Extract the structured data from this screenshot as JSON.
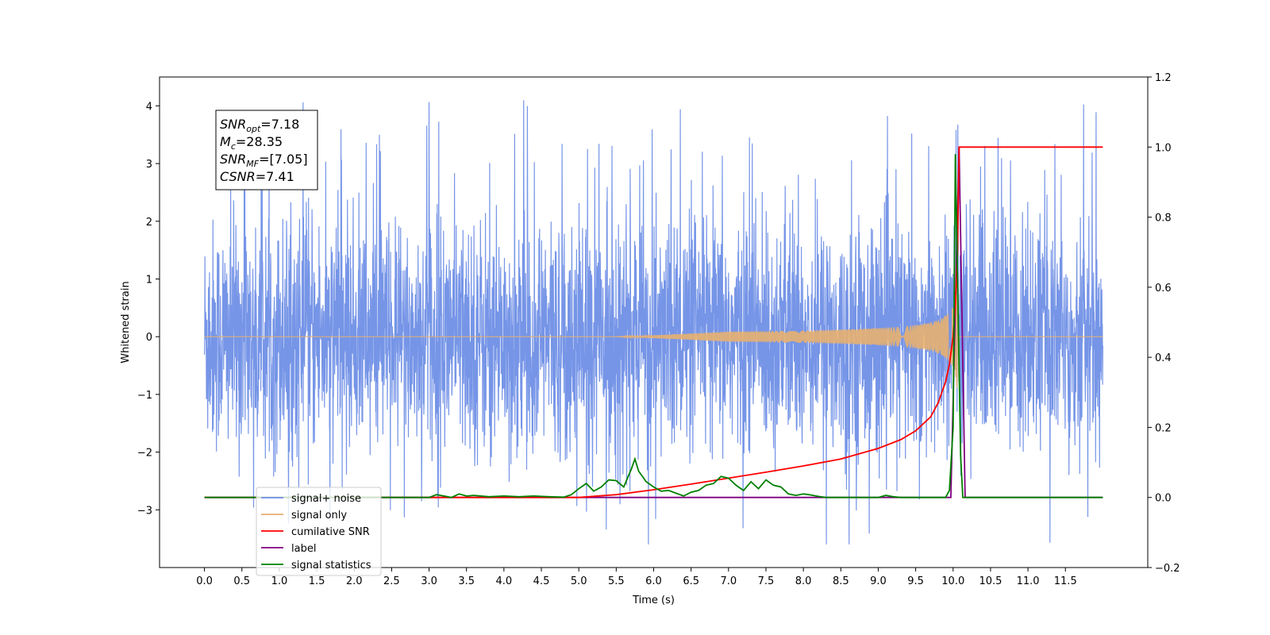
{
  "chart_data": {
    "type": "line",
    "title": "",
    "xlabel": "Time (s)",
    "ylabel": "Whitened strain",
    "y2label": "",
    "xlim": [
      -0.6,
      12.6
    ],
    "ylim": [
      -4.0,
      4.5
    ],
    "y2lim": [
      -0.2,
      1.2
    ],
    "x_ticks": [
      0.0,
      0.5,
      1.0,
      1.5,
      2.0,
      2.5,
      3.0,
      3.5,
      4.0,
      4.5,
      5.0,
      5.5,
      6.0,
      6.5,
      7.0,
      7.5,
      8.0,
      8.5,
      9.0,
      9.5,
      10.0,
      10.5,
      11.0,
      11.5
    ],
    "x_tick_labels": [
      "0.0",
      "0.5",
      "1.0",
      "1.5",
      "2.0",
      "2.5",
      "3.0",
      "3.5",
      "4.0",
      "4.5",
      "5.0",
      "5.5",
      "6.0",
      "6.5",
      "7.0",
      "7.5",
      "8.0",
      "8.5",
      "9.0",
      "9.5",
      "10.0",
      "10.5",
      "11.0",
      "11.5"
    ],
    "y_ticks": [
      -3,
      -2,
      -1,
      0,
      1,
      2,
      3,
      4
    ],
    "y_tick_labels": [
      "−3",
      "−2",
      "−1",
      "0",
      "1",
      "2",
      "3",
      "4"
    ],
    "y2_ticks": [
      -0.2,
      0.0,
      0.2,
      0.4,
      0.6,
      0.8,
      1.0,
      1.2
    ],
    "y2_tick_labels": [
      "−0.2",
      "0.0",
      "0.2",
      "0.4",
      "0.6",
      "0.8",
      "1.0",
      "1.2"
    ],
    "grid": false,
    "legend_placement": "lower-left",
    "annotation": [
      {
        "base": "SNR",
        "sub": "opt",
        "rest": "=7.18"
      },
      {
        "base": "M",
        "sub": "c",
        "rest": "=28.35"
      },
      {
        "base": "SNR",
        "sub": "MF",
        "rest": "=[7.05]"
      },
      {
        "base": "CSNR",
        "sub": "",
        "rest": "=7.41"
      }
    ],
    "series": [
      {
        "name": "signal+ noise",
        "axis": "left",
        "color": "#6f8fe6",
        "description_values": {
          "x_range": [
            0.0,
            12.0
          ],
          "envelope": [
            -3.6,
            4.1
          ]
        }
      },
      {
        "name": "signal only",
        "axis": "left",
        "color": "#e8b070",
        "chirp": {
          "t_start": 6.5,
          "t_merge": 10.08,
          "peak_amplitude": 0.9
        }
      },
      {
        "name": "cumilative SNR",
        "axis": "right",
        "color": "#ff0000",
        "x": [
          0.0,
          5.0,
          5.5,
          6.0,
          6.5,
          7.0,
          7.5,
          8.0,
          8.5,
          9.0,
          9.3,
          9.5,
          9.7,
          9.8,
          9.9,
          9.95,
          10.0,
          10.03,
          10.06,
          10.08,
          12.0
        ],
        "values": [
          0.0,
          0.0,
          0.008,
          0.022,
          0.038,
          0.055,
          0.072,
          0.09,
          0.11,
          0.14,
          0.165,
          0.19,
          0.23,
          0.27,
          0.33,
          0.38,
          0.46,
          0.55,
          0.7,
          1.0,
          1.0
        ]
      },
      {
        "name": "label",
        "axis": "right",
        "color": "#800080",
        "x": [
          0.0,
          9.97,
          10.08,
          10.16,
          12.0
        ],
        "values": [
          0.0,
          0.0,
          1.0,
          0.0,
          0.0
        ]
      },
      {
        "name": "signal statistics",
        "axis": "right",
        "color": "#008000",
        "x": [
          0.0,
          3.0,
          3.1,
          3.2,
          3.3,
          3.4,
          3.5,
          3.6,
          3.8,
          4.0,
          4.2,
          4.4,
          4.6,
          4.8,
          4.9,
          5.0,
          5.1,
          5.2,
          5.3,
          5.4,
          5.5,
          5.6,
          5.7,
          5.75,
          5.8,
          5.9,
          6.0,
          6.1,
          6.2,
          6.3,
          6.4,
          6.5,
          6.6,
          6.7,
          6.8,
          6.9,
          7.0,
          7.1,
          7.2,
          7.3,
          7.4,
          7.5,
          7.6,
          7.7,
          7.8,
          7.9,
          8.0,
          8.1,
          8.2,
          8.3,
          8.4,
          9.0,
          9.1,
          9.2,
          9.3,
          9.9,
          9.95,
          10.0,
          10.03,
          10.06,
          10.1,
          10.13,
          10.16,
          12.0
        ],
        "values": [
          0.0,
          0.0,
          0.008,
          0.004,
          0.0,
          0.01,
          0.004,
          0.006,
          0.002,
          0.004,
          0.002,
          0.004,
          0.002,
          0.001,
          0.008,
          0.025,
          0.04,
          0.018,
          0.03,
          0.05,
          0.048,
          0.03,
          0.08,
          0.11,
          0.075,
          0.045,
          0.03,
          0.018,
          0.02,
          0.012,
          0.004,
          0.015,
          0.02,
          0.035,
          0.04,
          0.06,
          0.055,
          0.035,
          0.02,
          0.045,
          0.025,
          0.05,
          0.035,
          0.03,
          0.01,
          0.006,
          0.01,
          0.007,
          0.003,
          0.0,
          0.0,
          0.0,
          0.006,
          0.002,
          0.0,
          0.0,
          0.02,
          0.2,
          0.98,
          0.62,
          0.12,
          0.0,
          0.0,
          0.0
        ]
      }
    ]
  }
}
